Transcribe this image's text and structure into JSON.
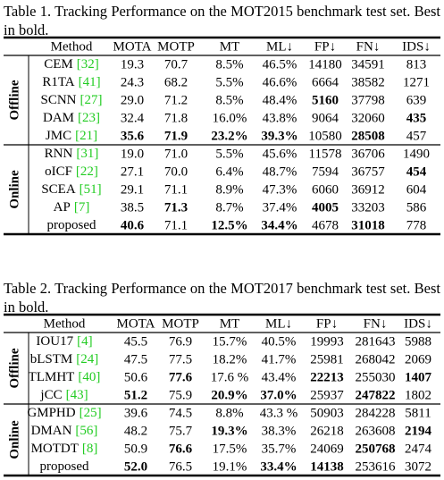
{
  "tables": [
    {
      "caption": "Table 1. Tracking Performance on the MOT2015 benchmark test set. Best in bold.",
      "columns": [
        "Method",
        "MOTA",
        "MOTP",
        "MT",
        "ML↓",
        "FP↓",
        "FN↓",
        "IDS↓"
      ],
      "groups": [
        {
          "label": "Offline",
          "rows": [
            {
              "method": "CEM",
              "ref": "[32]",
              "cells": [
                "19.3",
                "70.7",
                "8.5%",
                "46.5%",
                "14180",
                "34591",
                "813"
              ],
              "bold": []
            },
            {
              "method": "R1TA",
              "ref": "[41]",
              "cells": [
                "24.3",
                "68.2",
                "5.5%",
                "46.6%",
                "6664",
                "38582",
                "1271"
              ],
              "bold": []
            },
            {
              "method": "SCNN",
              "ref": "[27]",
              "cells": [
                "29.0",
                "71.2",
                "8.5%",
                "48.4%",
                "5160",
                "37798",
                "639"
              ],
              "bold": [
                4
              ]
            },
            {
              "method": "DAM",
              "ref": "[23]",
              "cells": [
                "32.4",
                "71.8",
                "16.0%",
                "43.8%",
                "9064",
                "32060",
                "435"
              ],
              "bold": [
                6
              ]
            },
            {
              "method": "JMC",
              "ref": "[21]",
              "cells": [
                "35.6",
                "71.9",
                "23.2%",
                "39.3%",
                "10580",
                "28508",
                "457"
              ],
              "bold": [
                0,
                1,
                2,
                3,
                5
              ]
            }
          ]
        },
        {
          "label": "Online",
          "rows": [
            {
              "method": "RNN",
              "ref": "[31]",
              "cells": [
                "19.0",
                "71.0",
                "5.5%",
                "45.6%",
                "11578",
                "36706",
                "1490"
              ],
              "bold": []
            },
            {
              "method": "oICF",
              "ref": "[22]",
              "cells": [
                "27.1",
                "70.0",
                "6.4%",
                "48.7%",
                "7594",
                "36757",
                "454"
              ],
              "bold": [
                6
              ]
            },
            {
              "method": "SCEA",
              "ref": "[51]",
              "cells": [
                "29.1",
                "71.1",
                "8.9%",
                "47.3%",
                "6060",
                "36912",
                "604"
              ],
              "bold": []
            },
            {
              "method": "AP",
              "ref": "[7]",
              "cells": [
                "38.5",
                "71.3",
                "8.7%",
                "37.4%",
                "4005",
                "33203",
                "586"
              ],
              "bold": [
                1,
                4
              ]
            },
            {
              "method": "proposed",
              "cells": [
                "40.6",
                "71.1",
                "12.5%",
                "34.4%",
                "4678",
                "31018",
                "778"
              ],
              "bold": [
                0,
                2,
                3,
                5
              ]
            }
          ]
        }
      ]
    },
    {
      "caption": "Table 2. Tracking Performance on the MOT2017 benchmark test set. Best in bold.",
      "columns": [
        "Method",
        "MOTA",
        "MOTP",
        "MT",
        "ML↓",
        "FP↓",
        "FN↓",
        "IDS↓"
      ],
      "groups": [
        {
          "label": "Offline",
          "rows": [
            {
              "method": "IOU17",
              "ref": "[4]",
              "cells": [
                "45.5",
                "76.9",
                "15.7%",
                "40.5%",
                "19993",
                "281643",
                "5988"
              ],
              "bold": []
            },
            {
              "method": "bLSTM",
              "ref": "[24]",
              "cells": [
                "47.5",
                "77.5",
                "18.2%",
                "41.7%",
                "25981",
                "268042",
                "2069"
              ],
              "bold": []
            },
            {
              "method": "TLMHT",
              "ref": "[40]",
              "cells": [
                "50.6",
                "77.6",
                "17.6 %",
                "43.4%",
                "22213",
                "255030",
                "1407"
              ],
              "bold": [
                1,
                4,
                6
              ]
            },
            {
              "method": "jCC",
              "ref": "[43]",
              "cells": [
                "51.2",
                "75.9",
                "20.9%",
                "37.0%",
                "25937",
                "247822",
                "1802"
              ],
              "bold": [
                0,
                2,
                3,
                5
              ]
            }
          ]
        },
        {
          "label": "Online",
          "rows": [
            {
              "method": "GMPHD",
              "ref": "[25]",
              "cells": [
                "39.6",
                "74.5",
                "8.8%",
                "43.3 %",
                "50903",
                "284228",
                "5811"
              ],
              "bold": []
            },
            {
              "method": "DMAN",
              "ref": "[56]",
              "cells": [
                "48.2",
                "75.7",
                "19.3%",
                "38.3%",
                "26218",
                "263608",
                "2194"
              ],
              "bold": [
                2,
                6
              ]
            },
            {
              "method": "MOTDT",
              "ref": "[8]",
              "cells": [
                "50.9",
                "76.6",
                "17.5%",
                "35.7%",
                "24069",
                "250768",
                "2474"
              ],
              "bold": [
                1,
                5
              ]
            },
            {
              "method": "proposed",
              "cells": [
                "52.0",
                "76.5",
                "19.1%",
                "33.4%",
                "14138",
                "253616",
                "3072"
              ],
              "bold": [
                0,
                3,
                4
              ]
            }
          ]
        }
      ]
    }
  ]
}
